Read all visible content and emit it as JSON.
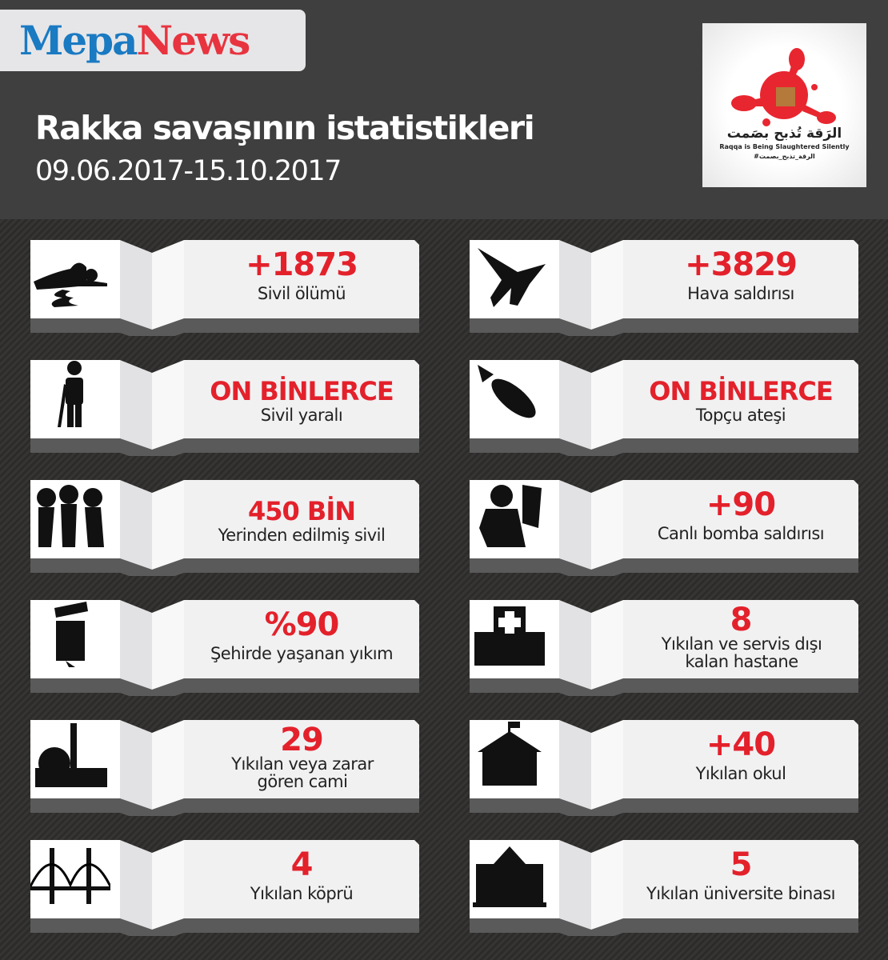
{
  "brand": {
    "part1": "Mepa",
    "part2": "News"
  },
  "header": {
    "title": "Rakka savaşının istatistikleri",
    "date_range": "09.06.2017-15.10.2017"
  },
  "partner_logo": {
    "arabic": "الرَقة تُذبح بصَمت",
    "english": "Raqqa is Being Slaughtered Silently",
    "hashtag": "#الرقة_تذبح_بصمت",
    "accent": "#e8262f"
  },
  "colors": {
    "value": "#e3212b",
    "label": "#222222",
    "card": "#f1f1f2"
  },
  "stats": [
    {
      "value": "+1873",
      "label": "Sivil ölümü",
      "icon": "dead-body-icon"
    },
    {
      "value": "+3829",
      "label": "Hava saldırısı",
      "icon": "fighter-jet-icon"
    },
    {
      "value": "ON BİNLERCE",
      "label": "Sivil yaralı",
      "icon": "injured-person-icon"
    },
    {
      "value": "ON BİNLERCE",
      "label": "Topçu ateşi",
      "icon": "artillery-shell-icon"
    },
    {
      "value": "450 BİN",
      "label": "Yerinden edilmiş sivil",
      "icon": "refugees-icon"
    },
    {
      "value": "+90",
      "label": "Canlı bomba saldırısı",
      "icon": "suicide-bomber-icon"
    },
    {
      "value": "%90",
      "label": "Şehirde yaşanan yıkım",
      "icon": "destroyed-building-icon"
    },
    {
      "value": "8",
      "label": "Yıkılan ve servis dışı kalan hastane",
      "icon": "hospital-icon"
    },
    {
      "value": "29",
      "label": "Yıkılan veya zarar gören cami",
      "icon": "mosque-icon"
    },
    {
      "value": "+40",
      "label": "Yıkılan okul",
      "icon": "school-icon"
    },
    {
      "value": "4",
      "label": "Yıkılan köprü",
      "icon": "bridge-icon"
    },
    {
      "value": "5",
      "label": "Yıkılan üniversite binası",
      "icon": "university-icon"
    }
  ]
}
